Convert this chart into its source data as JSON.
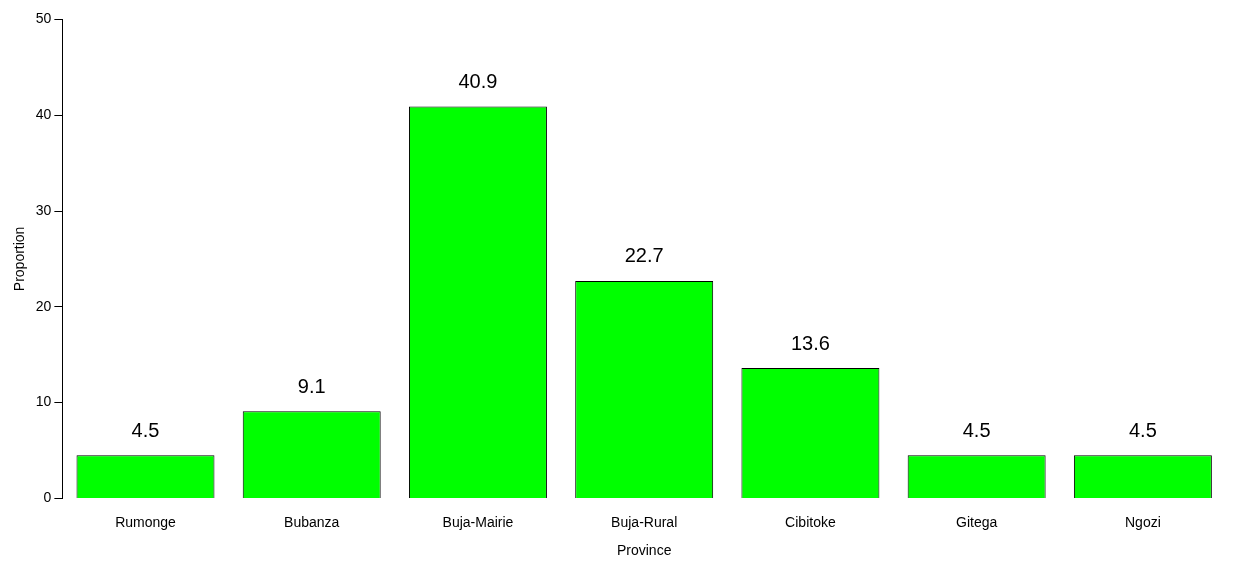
{
  "chart_data": {
    "type": "bar",
    "xlabel": "Province",
    "ylabel": "Proportion",
    "categories": [
      "Rumonge",
      "Bubanza",
      "Buja-Mairie",
      "Buja-Rural",
      "Cibitoke",
      "Gitega",
      "Ngozi"
    ],
    "values": [
      4.5,
      9.1,
      40.9,
      22.7,
      13.6,
      4.5,
      4.5
    ],
    "color": "#00ff00",
    "ylim": [
      0,
      50
    ],
    "yticks": [
      0,
      10,
      20,
      30,
      40,
      50
    ],
    "grid": false,
    "legend": false,
    "data_labels": true
  }
}
